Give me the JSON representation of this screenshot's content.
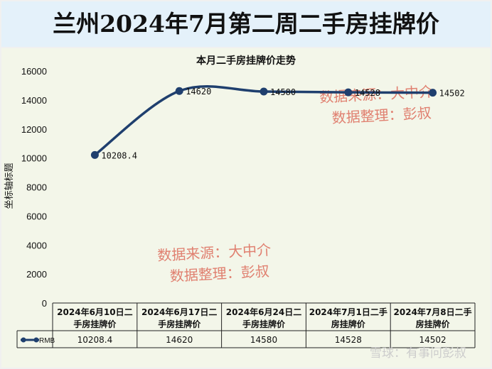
{
  "header": {
    "title": "兰州2024年7月第二周二手房挂牌价"
  },
  "chart_data": {
    "type": "line",
    "title": "本月二手房挂牌价走势",
    "ylabel": "坐标轴标题",
    "xlabel": "",
    "ylim": [
      0,
      16000
    ],
    "yticks": [
      0,
      2000,
      4000,
      6000,
      8000,
      10000,
      12000,
      14000,
      16000
    ],
    "grid": false,
    "legend": "in data table",
    "categories": [
      "2024年6月10日二手房挂牌价",
      "2024年6月17日二手房挂牌价",
      "2024年6月24日二手房挂牌价",
      "2024年7月1日二手房挂牌价",
      "2024年7月8日二手房挂牌价"
    ],
    "series": [
      {
        "name": "RMB",
        "values": [
          10208.4,
          14620,
          14580,
          14528,
          14502
        ],
        "labels": [
          "10208.4",
          "14620",
          "14580",
          "14528",
          "14502"
        ],
        "color": "#1f3f6e"
      }
    ]
  },
  "table": {
    "headers": [
      [
        "2024年6月10日二",
        "手房挂牌价"
      ],
      [
        "2024年6月17日二",
        "手房挂牌价"
      ],
      [
        "2024年6月24日二",
        "手房挂牌价"
      ],
      [
        "2024年7月1日二手",
        "房挂牌价"
      ],
      [
        "2024年7月8日二手",
        "房挂牌价"
      ]
    ],
    "series_label": "RMB",
    "cells": [
      "10208.4",
      "14620",
      "14580",
      "14528",
      "14502"
    ]
  },
  "watermarks": {
    "upper_right": [
      "数据来源：大中介",
      "数据整理：彭叔"
    ],
    "middle": [
      "数据来源：大中介",
      "数据整理：彭叔"
    ],
    "footer": "雪球：有事问彭叔"
  }
}
